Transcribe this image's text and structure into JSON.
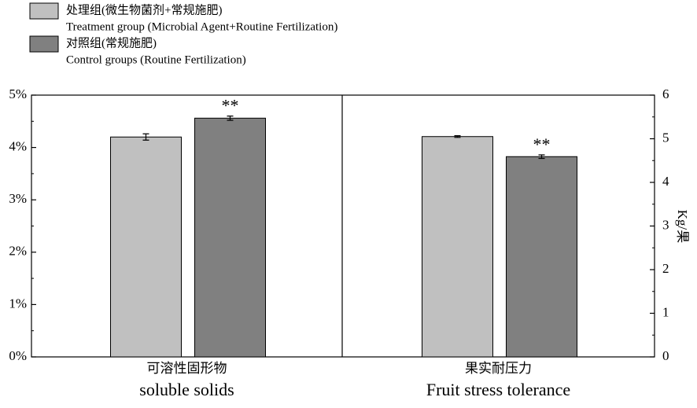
{
  "chart_data": {
    "type": "bar",
    "series": [
      {
        "name": "处理组(微生物菌剂+常规施肥)",
        "name_en": "Treatment group (Microbial Agent+Routine Fertilization)",
        "color": "#c0c0c0"
      },
      {
        "name": "对照组(常规施肥)",
        "name_en": "Control groups (Routine Fertilization)",
        "color": "#808080"
      }
    ],
    "panels": [
      {
        "categories": [
          "可溶性固形物"
        ],
        "categories_en": [
          "soluble solids"
        ],
        "axis": "y",
        "ylim": [
          0,
          5
        ],
        "yticks": [
          {
            "value": 0,
            "label": "0%"
          },
          {
            "value": 1,
            "label": "1%"
          },
          {
            "value": 2,
            "label": "2%"
          },
          {
            "value": 3,
            "label": "3%"
          },
          {
            "value": 4,
            "label": "4%"
          },
          {
            "value": 5,
            "label": "5%"
          }
        ],
        "values": [
          [
            4.2
          ],
          [
            4.56
          ]
        ],
        "errors": [
          [
            0.06
          ],
          [
            0.04
          ]
        ],
        "annotation": "**"
      },
      {
        "categories": [
          "果实耐压力"
        ],
        "categories_en": [
          "Fruit stress tolerance"
        ],
        "axis": "y2",
        "y2label": "Kg/果",
        "y2lim": [
          0,
          6
        ],
        "y2ticks": [
          0,
          1,
          2,
          3,
          4,
          5,
          6
        ],
        "values": [
          [
            5.05
          ],
          [
            4.59
          ]
        ],
        "errors": [
          [
            0.02
          ],
          [
            0.04
          ]
        ],
        "annotation": "**"
      }
    ]
  }
}
